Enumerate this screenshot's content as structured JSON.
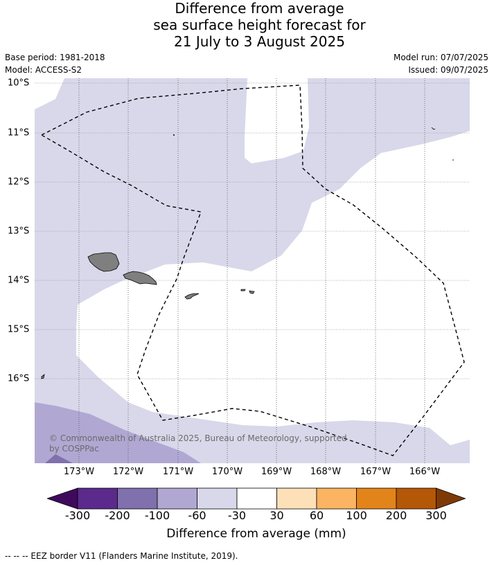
{
  "title_lines": [
    "Difference from average",
    "sea surface height forecast for",
    "21 July to 3 August 2025"
  ],
  "base_period": "Base period: 1981-2018",
  "model": "Model: ACCESS-S2",
  "model_run": "Model run: 07/07/2025",
  "issued": "Issued: 09/07/2025",
  "copyright": "© Commonwealth of Australia 2025, Bureau of Meteorology, supported by COSPPac",
  "eez_note": "--  --  -- EEZ border V11 (Flanders Marine Institute, 2019).",
  "x_ticks": [
    "173°W",
    "172°W",
    "171°W",
    "170°W",
    "169°W",
    "168°W",
    "167°W",
    "166°W"
  ],
  "y_ticks": [
    "10°S",
    "11°S",
    "12°S",
    "13°S",
    "14°S",
    "15°S",
    "16°S"
  ],
  "colorbar": {
    "title": "Difference from average (mm)",
    "tick_labels": [
      "-300",
      "-200",
      "-100",
      "-60",
      "-30",
      "30",
      "60",
      "100",
      "200",
      "300"
    ],
    "colors": [
      "#3f0a5c",
      "#5b2a8c",
      "#8070ad",
      "#b0a8d2",
      "#d8d8ea",
      "#ffffff",
      "#fde0b8",
      "#fbb461",
      "#e3841a",
      "#b45707",
      "#7e3a06"
    ]
  }
}
